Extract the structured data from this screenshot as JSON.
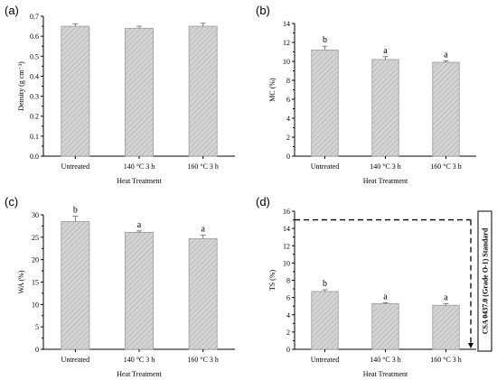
{
  "chart_data": [
    {
      "type": "bar",
      "panel_label": "(a)",
      "categories": [
        "Untreated",
        "140 °C 3 h",
        "160 °C 3 h"
      ],
      "values": [
        0.65,
        0.64,
        0.65
      ],
      "errors": [
        0.012,
        0.01,
        0.015
      ],
      "letters": [],
      "xlabel": "Heat Treatment",
      "ylabel": "Density (g cm⁻³)",
      "ylim": [
        0,
        0.7
      ],
      "yticks": [
        "0.0",
        "0.1",
        "0.2",
        "0.3",
        "0.4",
        "0.5",
        "0.6",
        "0.7"
      ],
      "ytick_values": [
        0,
        0.1,
        0.2,
        0.3,
        0.4,
        0.5,
        0.6,
        0.7
      ]
    },
    {
      "type": "bar",
      "panel_label": "(b)",
      "categories": [
        "Untreated",
        "140 °C 3 h",
        "160 °C 3 h"
      ],
      "values": [
        11.2,
        10.2,
        9.9
      ],
      "errors": [
        0.4,
        0.3,
        0.15
      ],
      "letters": [
        "b",
        "a",
        "a"
      ],
      "xlabel": "Heat Treatment",
      "ylabel": "MC (%)",
      "ylim": [
        0,
        14
      ],
      "yticks": [
        "0",
        "2",
        "4",
        "6",
        "8",
        "10",
        "12",
        "14"
      ],
      "ytick_values": [
        0,
        2,
        4,
        6,
        8,
        10,
        12,
        14
      ]
    },
    {
      "type": "bar",
      "panel_label": "(c)",
      "categories": [
        "Untreated",
        "140 °C 3 h",
        "160 °C 3 h"
      ],
      "values": [
        28.5,
        26.1,
        24.7
      ],
      "errors": [
        1.2,
        0.3,
        0.8
      ],
      "letters": [
        "b",
        "a",
        "a"
      ],
      "xlabel": "Heat Treatment",
      "ylabel": "WA (%)",
      "ylim": [
        0,
        30
      ],
      "yticks": [
        "0",
        "5",
        "10",
        "15",
        "20",
        "25",
        "30"
      ],
      "ytick_values": [
        0,
        5,
        10,
        15,
        20,
        25,
        30
      ]
    },
    {
      "type": "bar",
      "panel_label": "(d)",
      "categories": [
        "Untreated",
        "140 °C 3 h",
        "160 °C 3 h"
      ],
      "values": [
        6.7,
        5.3,
        5.1
      ],
      "errors": [
        0.2,
        0.1,
        0.2
      ],
      "letters": [
        "b",
        "a",
        "a"
      ],
      "xlabel": "Heat Treatment",
      "ylabel": "TS (%)",
      "ylim": [
        0,
        16
      ],
      "yticks": [
        "0",
        "2",
        "4",
        "6",
        "8",
        "10",
        "12",
        "14",
        "16"
      ],
      "ytick_values": [
        0,
        2,
        4,
        6,
        8,
        10,
        12,
        14,
        16
      ],
      "reference_line": {
        "value": 15,
        "label": "CSA 0437.0 (Grade O-1) Standard"
      }
    }
  ]
}
